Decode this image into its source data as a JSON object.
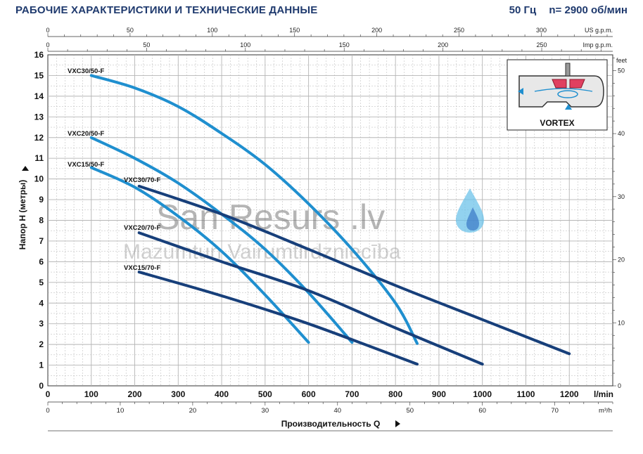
{
  "header": {
    "title": "РАБОЧИЕ ХАРАКТЕРИСТИКИ И ТЕХНИЧЕСКИЕ ДАННЫЕ",
    "frequency": "50 Гц",
    "speed": "n= 2900 об/мин"
  },
  "watermark": {
    "line1": "San Resurs .lv",
    "line2": "Mazumtun Vairumtirdzniecība"
  },
  "vortex_label": "VORTEX",
  "colors": {
    "series_50F": "#1f8fcf",
    "series_70F": "#173f7a",
    "grid": "#b5b5b5",
    "header": "#1f3a6e"
  },
  "chart_data": {
    "type": "line",
    "x_unit_main": "l/min",
    "xlabel": "Производительность Q",
    "ylabel": "Напор H (метры)",
    "xlim": [
      0,
      1300
    ],
    "ylim": [
      0,
      16
    ],
    "x_ticks_lmin": [
      0,
      100,
      200,
      300,
      400,
      500,
      600,
      700,
      800,
      900,
      1000,
      1100,
      1200
    ],
    "y_ticks_m": [
      0,
      1,
      2,
      3,
      4,
      5,
      6,
      7,
      8,
      9,
      10,
      11,
      12,
      13,
      14,
      15,
      16
    ],
    "secondary_axes": {
      "us_gpm": {
        "label": "US g.p.m.",
        "ticks": [
          0,
          50,
          100,
          150,
          200,
          250,
          300
        ]
      },
      "imp_gpm": {
        "label": "Imp g.p.m.",
        "ticks": [
          0,
          50,
          100,
          150,
          200,
          250
        ]
      },
      "m3h": {
        "label": "m³/h",
        "ticks": [
          0,
          10,
          20,
          30,
          40,
          50,
          60,
          70
        ]
      },
      "feet": {
        "label": "feet",
        "ticks": [
          0,
          10,
          20,
          30,
          40,
          50
        ]
      }
    },
    "series": [
      {
        "name": "VXC30/50-F",
        "group": "50F",
        "x": [
          100,
          200,
          300,
          400,
          500,
          600,
          700,
          800,
          850
        ],
        "y": [
          15,
          14.4,
          13.5,
          12.2,
          10.7,
          8.8,
          6.6,
          4.0,
          2.05
        ]
      },
      {
        "name": "VXC20/50-F",
        "group": "50F",
        "x": [
          100,
          200,
          300,
          400,
          500,
          600,
          700
        ],
        "y": [
          12,
          11,
          9.8,
          8.3,
          6.6,
          4.5,
          2.1
        ]
      },
      {
        "name": "VXC15/50-F",
        "group": "50F",
        "x": [
          100,
          200,
          300,
          400,
          500,
          600
        ],
        "y": [
          10.55,
          9.6,
          8.2,
          6.5,
          4.4,
          2.1
        ]
      },
      {
        "name": "VXC30/70-F",
        "group": "70F",
        "x": [
          210,
          400,
          600,
          800,
          1000,
          1200
        ],
        "y": [
          9.65,
          8.3,
          6.6,
          4.85,
          3.2,
          1.55
        ]
      },
      {
        "name": "VXC20/70-F",
        "group": "70F",
        "x": [
          210,
          400,
          600,
          800,
          1000
        ],
        "y": [
          7.4,
          6.0,
          4.6,
          2.8,
          1.05
        ]
      },
      {
        "name": "VXC15/70-F",
        "group": "70F",
        "x": [
          210,
          400,
          600,
          850
        ],
        "y": [
          5.5,
          4.35,
          3.0,
          1.05
        ]
      }
    ]
  }
}
